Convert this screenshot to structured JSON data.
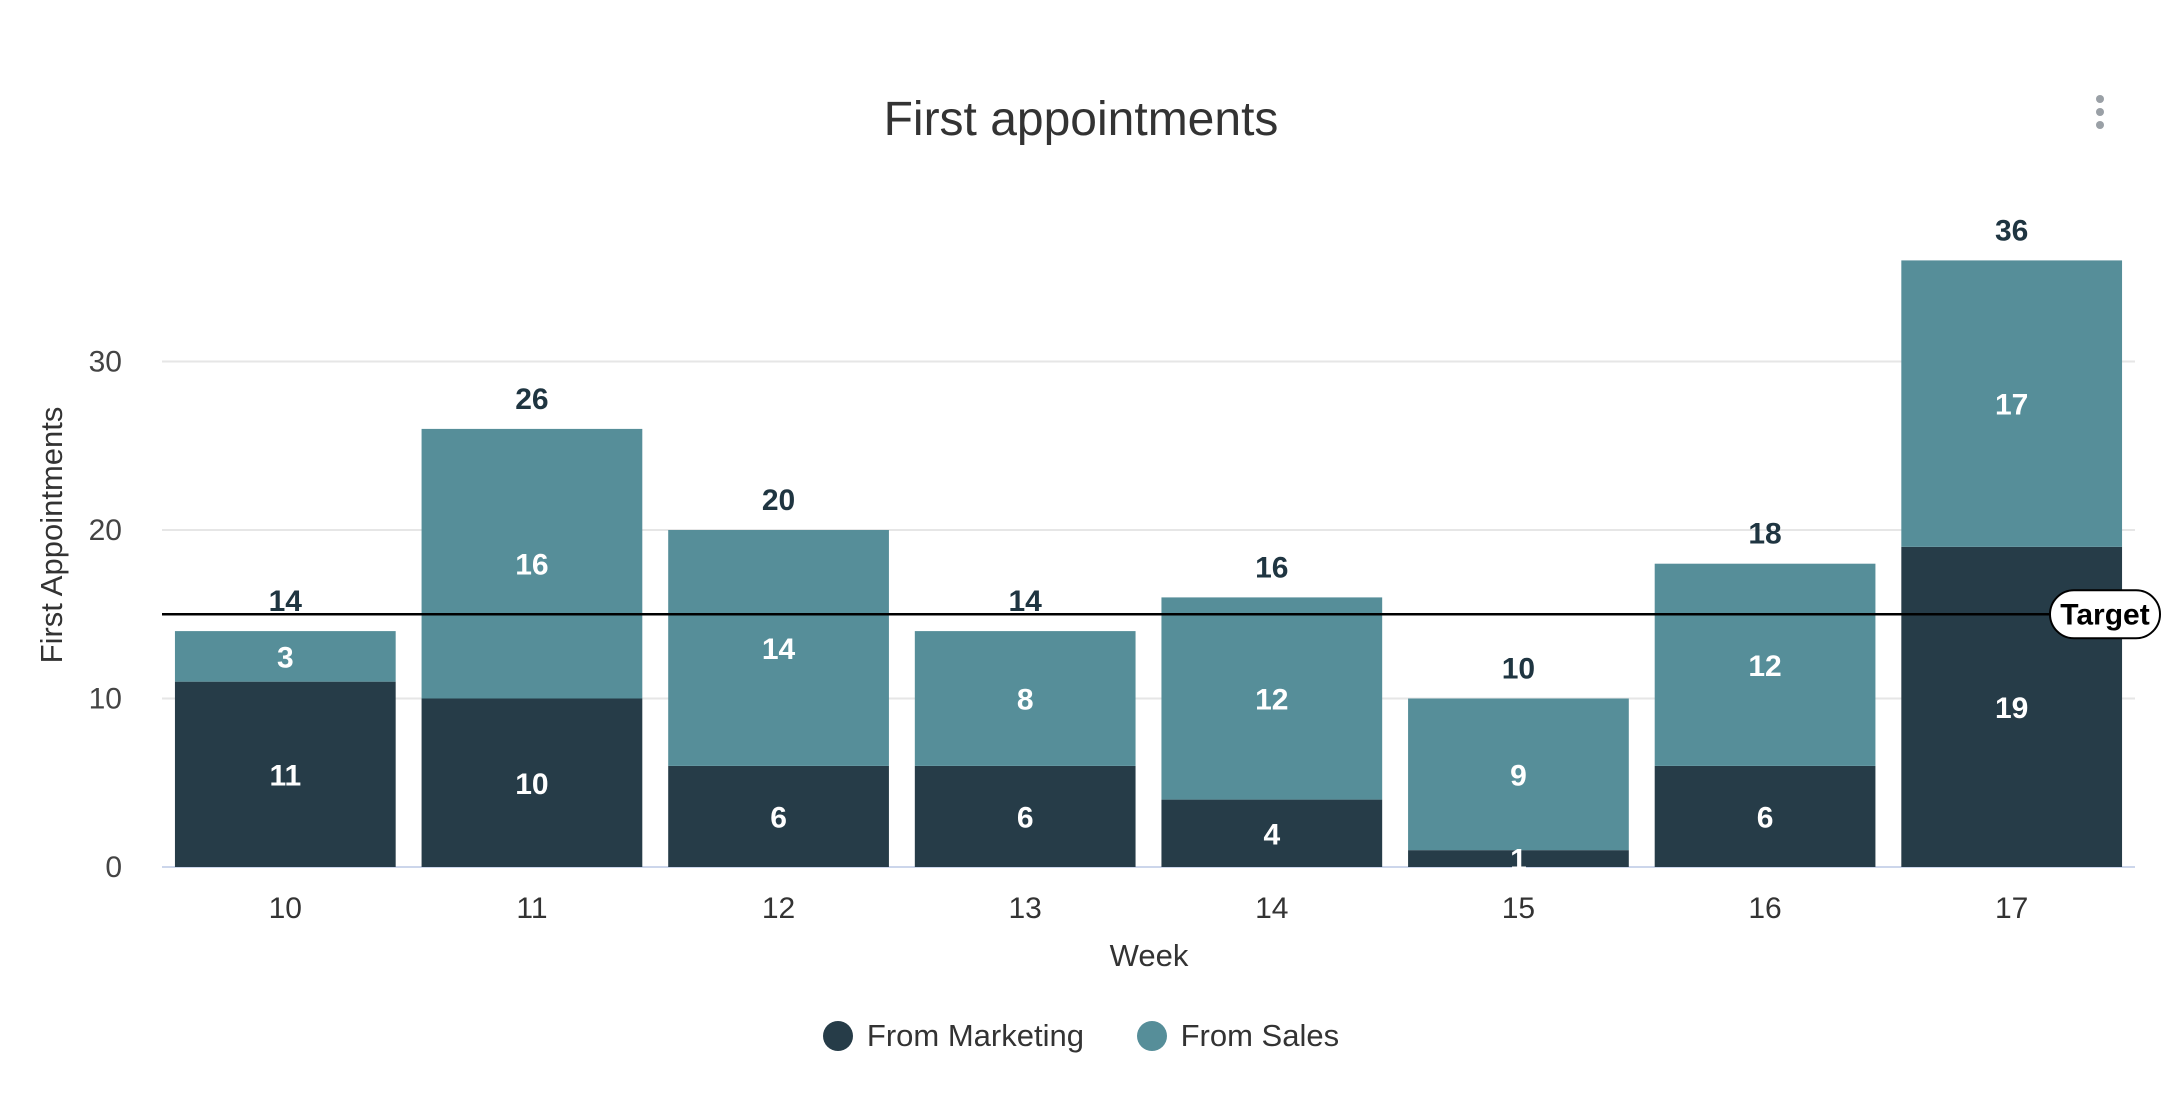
{
  "chart_data": {
    "type": "bar",
    "stacked": true,
    "title": "First appointments",
    "xlabel": "Week",
    "ylabel": "First Appointments",
    "categories": [
      "10",
      "11",
      "12",
      "13",
      "14",
      "15",
      "16",
      "17"
    ],
    "series": [
      {
        "name": "From Marketing",
        "color": "#263c48",
        "values": [
          11,
          10,
          6,
          6,
          4,
          1,
          6,
          19
        ]
      },
      {
        "name": "From Sales",
        "color": "#568e99",
        "values": [
          3,
          16,
          14,
          8,
          12,
          9,
          12,
          17
        ]
      }
    ],
    "totals": [
      14,
      26,
      20,
      14,
      16,
      10,
      18,
      36
    ],
    "y_ticks": [
      0,
      10,
      20,
      30
    ],
    "ylim": [
      0,
      36
    ],
    "grid": true,
    "legend_position": "bottom",
    "target": {
      "label": "Target",
      "value": 15,
      "color": "#000000"
    },
    "gridline_color": "#e6e6e6",
    "axis_color": "#ccd6eb"
  },
  "menu": {
    "icon": "more-vertical-icon"
  }
}
